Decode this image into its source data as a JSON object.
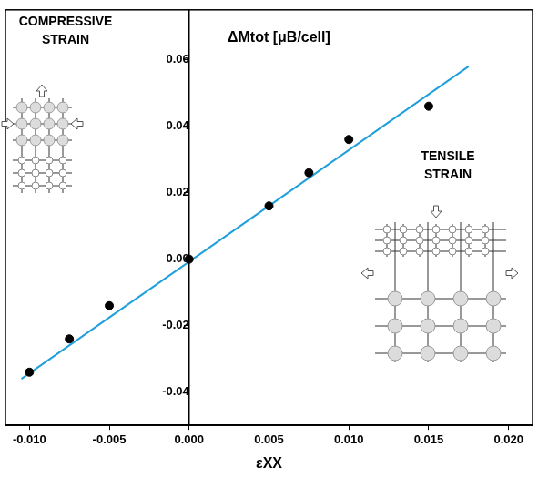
{
  "chart_data": {
    "type": "scatter",
    "title": "ΔMtot [μB/cell]",
    "x_label": "εXX",
    "annotations": [
      "COMPRESSIVE STRAIN",
      "TENSILE STRAIN"
    ],
    "series": [
      {
        "type": "scatter",
        "color": "#000000",
        "marker": "circle",
        "x": [
          -0.01,
          -0.0075,
          -0.005,
          0.0,
          0.005,
          0.0075,
          0.01,
          0.015
        ],
        "values": [
          -0.034,
          -0.024,
          -0.014,
          0.0,
          0.016,
          0.026,
          0.036,
          0.046
        ]
      },
      {
        "type": "line",
        "color": "#1f9fdc",
        "line_style": "solid",
        "x": [
          -0.0105,
          0.0175
        ],
        "values": [
          -0.036,
          0.058
        ]
      }
    ],
    "xlim": [
      -0.0115,
      0.0215
    ],
    "ylim": [
      -0.05,
      0.075
    ],
    "xticks": [
      {
        "value": -0.01,
        "label": "-0.010"
      },
      -0.005,
      {
        "value": 0,
        "label": "0.000"
      },
      0.005,
      {
        "value": 0.01,
        "label": "0.010"
      },
      0.015,
      {
        "value": 0.02,
        "label": "0.020"
      }
    ],
    "yticks": [
      -0.04,
      -0.02,
      {
        "value": 0,
        "label": "0.00"
      },
      0.02,
      0.04,
      0.06
    ],
    "grid": false
  }
}
